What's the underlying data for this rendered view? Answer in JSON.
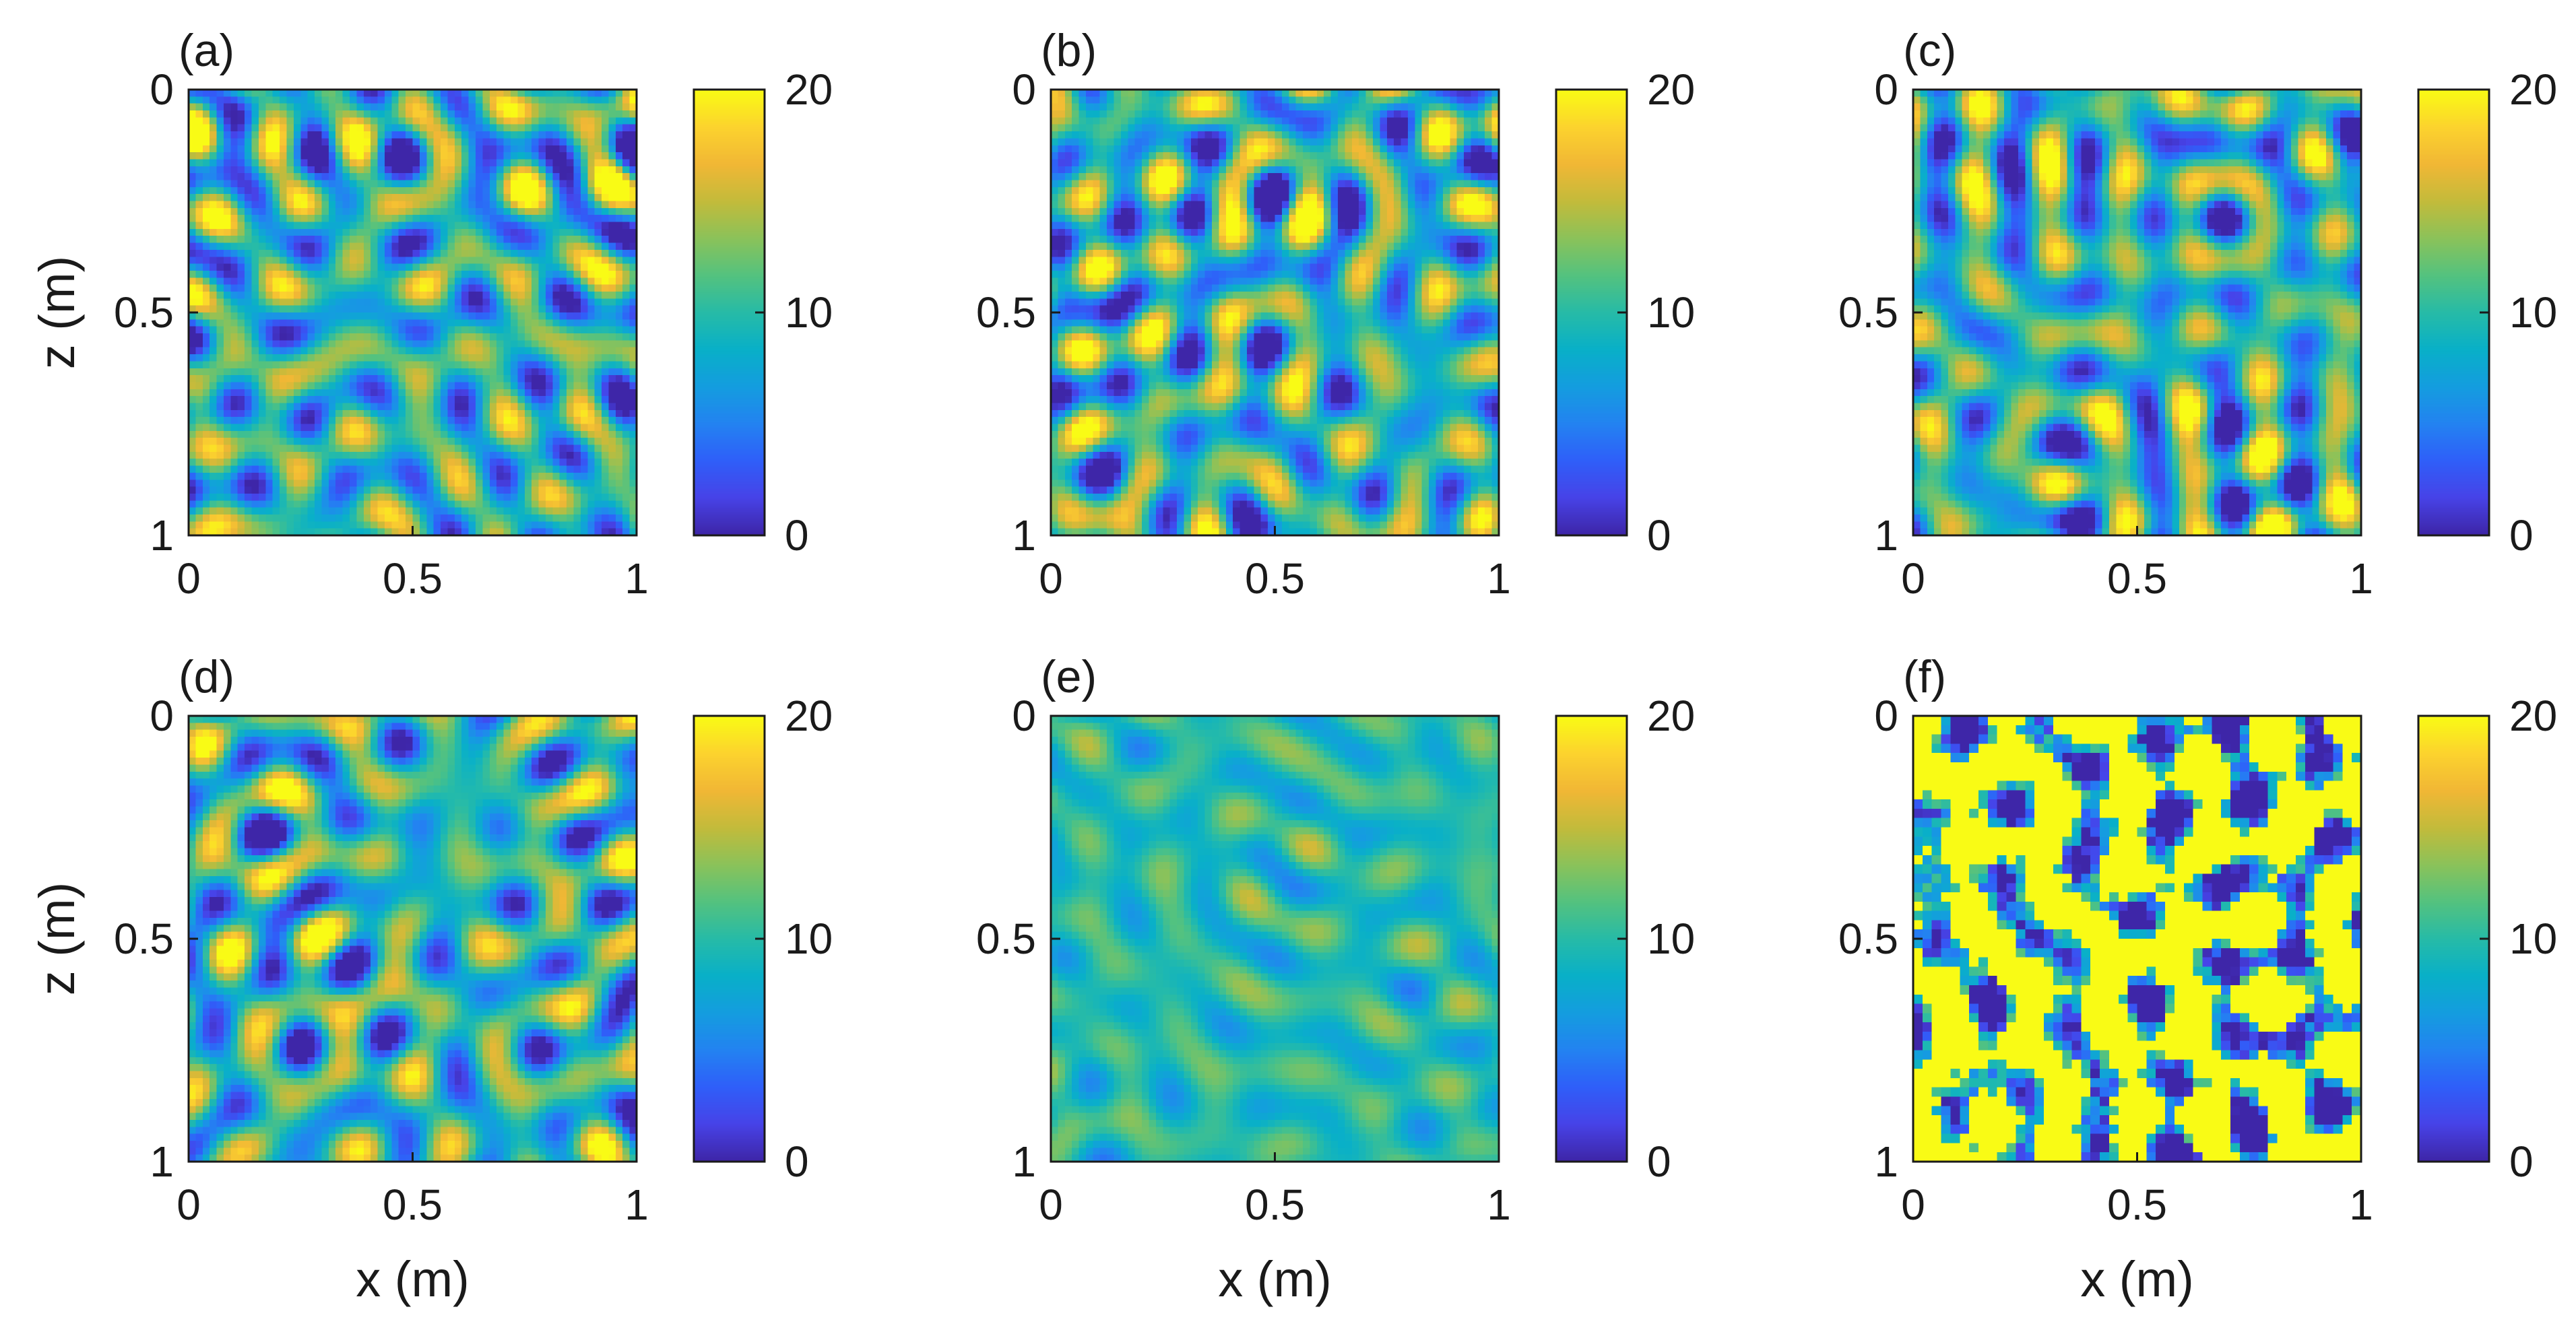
{
  "chart_data": [
    {
      "panel": "a",
      "label": "(a)",
      "type": "heatmap",
      "xlabel": "",
      "ylabel": "z (m)",
      "xticks": [
        "0",
        "0.5",
        "1"
      ],
      "yticks": [
        "0",
        "0.5",
        "1"
      ],
      "xlim": [
        0,
        1
      ],
      "zlim": [
        1,
        0
      ],
      "colorbar": {
        "range": [
          0,
          20
        ],
        "ticks": [
          "0",
          "10",
          "20"
        ]
      },
      "field": {
        "seed": 11,
        "mean": 9.5,
        "contrast": 1.25,
        "blocks": 64,
        "noise": 0.0,
        "sat": 0.0
      }
    },
    {
      "panel": "b",
      "label": "(b)",
      "type": "heatmap",
      "xlabel": "",
      "ylabel": "",
      "xticks": [
        "0",
        "0.5",
        "1"
      ],
      "yticks": [
        "0",
        "0.5",
        "1"
      ],
      "xlim": [
        0,
        1
      ],
      "zlim": [
        1,
        0
      ],
      "colorbar": {
        "range": [
          0,
          20
        ],
        "ticks": [
          "0",
          "10",
          "20"
        ]
      },
      "field": {
        "seed": 23,
        "mean": 9.5,
        "contrast": 1.3,
        "blocks": 64,
        "noise": 0.0,
        "sat": 0.0
      }
    },
    {
      "panel": "c",
      "label": "(c)",
      "type": "heatmap",
      "xlabel": "",
      "ylabel": "",
      "xticks": [
        "0",
        "0.5",
        "1"
      ],
      "yticks": [
        "0",
        "0.5",
        "1"
      ],
      "xlim": [
        0,
        1
      ],
      "zlim": [
        1,
        0
      ],
      "colorbar": {
        "range": [
          0,
          20
        ],
        "ticks": [
          "0",
          "10",
          "20"
        ]
      },
      "field": {
        "seed": 37,
        "mean": 9.5,
        "contrast": 1.25,
        "blocks": 64,
        "noise": 0.0,
        "sat": 0.0
      }
    },
    {
      "panel": "d",
      "label": "(d)",
      "type": "heatmap",
      "xlabel": "x (m)",
      "ylabel": "z (m)",
      "xticks": [
        "0",
        "0.5",
        "1"
      ],
      "yticks": [
        "0",
        "0.5",
        "1"
      ],
      "xlim": [
        0,
        1
      ],
      "zlim": [
        1,
        0
      ],
      "colorbar": {
        "range": [
          0,
          20
        ],
        "ticks": [
          "0",
          "10",
          "20"
        ]
      },
      "field": {
        "seed": 51,
        "mean": 9.5,
        "contrast": 1.2,
        "blocks": 64,
        "noise": 0.0,
        "sat": 0.0
      }
    },
    {
      "panel": "e",
      "label": "(e)",
      "type": "heatmap",
      "xlabel": "x (m)",
      "ylabel": "",
      "xticks": [
        "0",
        "0.5",
        "1"
      ],
      "yticks": [
        "0",
        "0.5",
        "1"
      ],
      "xlim": [
        0,
        1
      ],
      "zlim": [
        1,
        0
      ],
      "colorbar": {
        "range": [
          0,
          20
        ],
        "ticks": [
          "0",
          "10",
          "20"
        ]
      },
      "field": {
        "seed": 67,
        "mean": 9.8,
        "contrast": 0.45,
        "blocks": 64,
        "noise": 0.0,
        "sat": 0.0
      }
    },
    {
      "panel": "f",
      "label": "(f)",
      "type": "heatmap",
      "xlabel": "x (m)",
      "ylabel": "",
      "xticks": [
        "0",
        "0.5",
        "1"
      ],
      "yticks": [
        "0",
        "0.5",
        "1"
      ],
      "xlim": [
        0,
        1
      ],
      "zlim": [
        1,
        0
      ],
      "colorbar": {
        "range": [
          0,
          20
        ],
        "ticks": [
          "0",
          "10",
          "20"
        ]
      },
      "field": {
        "seed": 83,
        "mean": 13.5,
        "contrast": 2.6,
        "blocks": 48,
        "noise": 0.6,
        "sat": 1.0
      }
    }
  ],
  "colormap": [
    "#3e26a8",
    "#4743e8",
    "#2f5ff9",
    "#2383f1",
    "#149ddf",
    "#09b0c8",
    "#27bba7",
    "#54c27f",
    "#8bc25a",
    "#c3bb3b",
    "#f1b735",
    "#fcd32e",
    "#f9fb15"
  ],
  "colors": {
    "axis": "#1a1a1a",
    "background": "#ffffff"
  }
}
